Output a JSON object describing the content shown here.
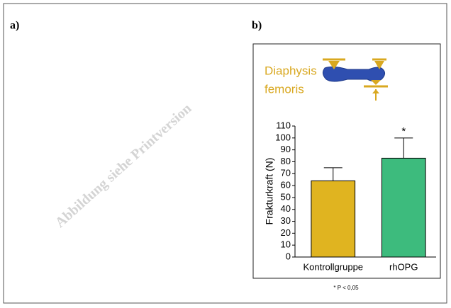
{
  "panel_labels": [
    "a)",
    "b)"
  ],
  "watermark": "Abbildung siehe Printversion",
  "chart_data": {
    "type": "bar",
    "inset_label": [
      "Diaphysis",
      "femoris"
    ],
    "ylabel": "Frakturkraft (N)",
    "categories": [
      "Kontrollgruppe",
      "rhOPG"
    ],
    "values": [
      64,
      83
    ],
    "errors": [
      11,
      17
    ],
    "colors": [
      "#e0b420",
      "#3dbb7d"
    ],
    "significance": [
      null,
      "*"
    ],
    "ylim": [
      0,
      110
    ],
    "yticks": [
      0,
      10,
      20,
      30,
      40,
      50,
      60,
      70,
      80,
      90,
      100,
      110
    ],
    "footnote": "* P < 0,05"
  }
}
